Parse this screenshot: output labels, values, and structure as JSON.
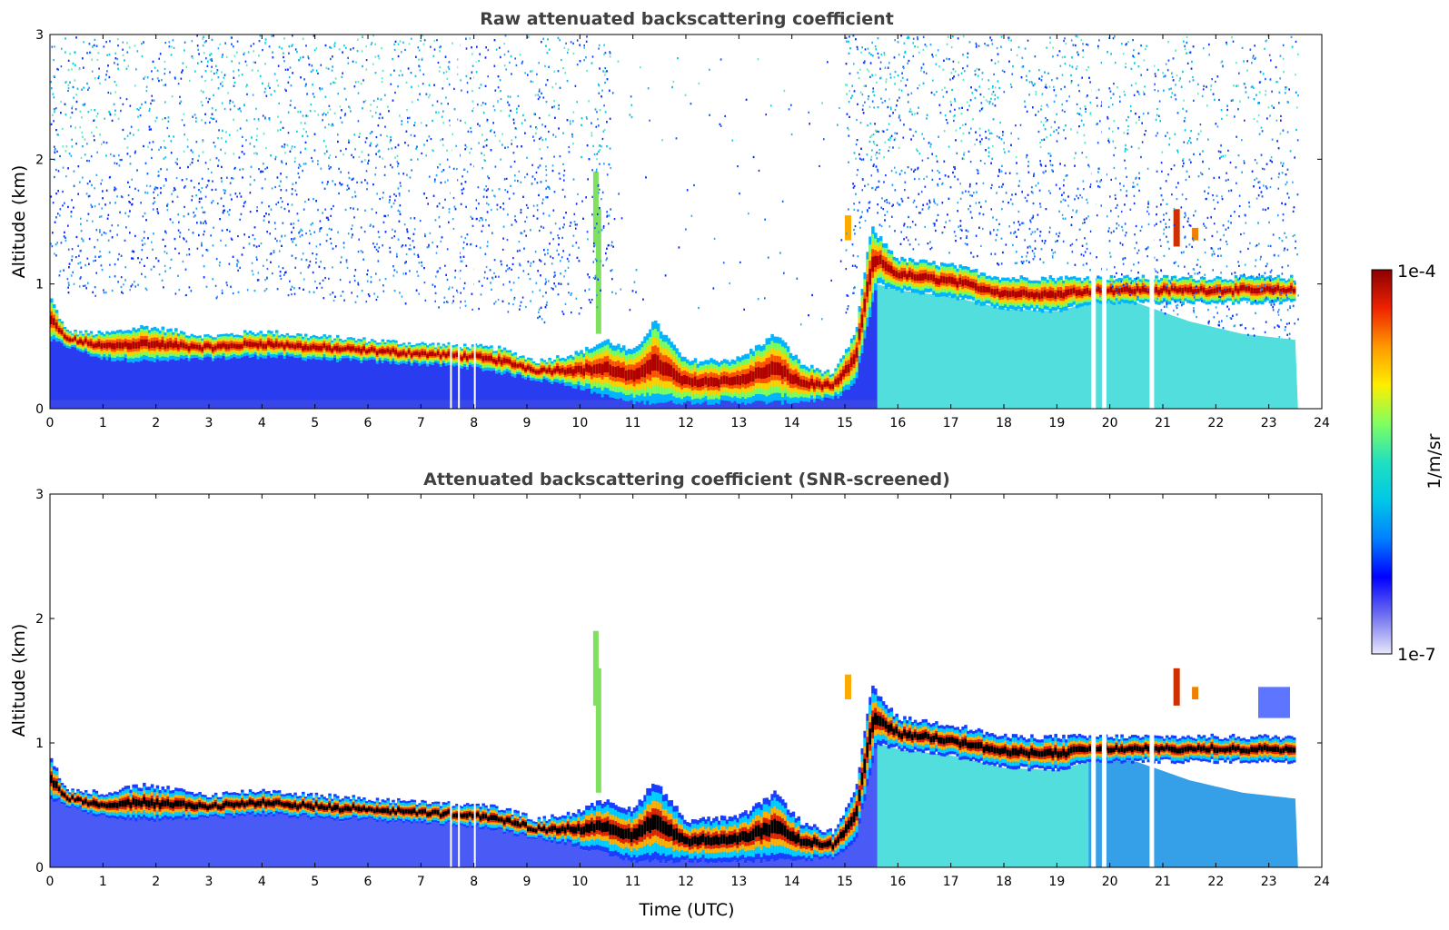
{
  "chart_data": [
    {
      "type": "heatmap",
      "title": "Raw attenuated backscattering coefficient",
      "xlabel": "",
      "ylabel": "Altitude (km)",
      "xlim": [
        0,
        24
      ],
      "ylim": [
        0,
        3
      ],
      "xticks": [
        "0",
        "1",
        "2",
        "3",
        "4",
        "5",
        "6",
        "7",
        "8",
        "9",
        "10",
        "11",
        "12",
        "13",
        "14",
        "15",
        "16",
        "17",
        "18",
        "19",
        "20",
        "21",
        "22",
        "23",
        "24"
      ],
      "yticks": [
        "0",
        "1",
        "2",
        "3"
      ],
      "data_end_hour": 23.55,
      "layer_top_km": [
        [
          0,
          0.9
        ],
        [
          0.3,
          0.62
        ],
        [
          1,
          0.6
        ],
        [
          1.8,
          0.66
        ],
        [
          3,
          0.58
        ],
        [
          4,
          0.62
        ],
        [
          5,
          0.58
        ],
        [
          6,
          0.55
        ],
        [
          7,
          0.52
        ],
        [
          8,
          0.5
        ],
        [
          8.5,
          0.48
        ],
        [
          9.2,
          0.38
        ],
        [
          10,
          0.45
        ],
        [
          10.5,
          0.55
        ],
        [
          11,
          0.45
        ],
        [
          11.4,
          0.7
        ],
        [
          12,
          0.38
        ],
        [
          13,
          0.4
        ],
        [
          13.7,
          0.6
        ],
        [
          14.2,
          0.35
        ],
        [
          14.8,
          0.28
        ],
        [
          15.2,
          0.6
        ],
        [
          15.5,
          1.45
        ],
        [
          16,
          1.2
        ],
        [
          17,
          1.15
        ],
        [
          18,
          1.05
        ],
        [
          19,
          1.05
        ],
        [
          19.6,
          1.05
        ]
      ],
      "layer_bottom_km": [
        [
          0,
          0.55
        ],
        [
          1,
          0.4
        ],
        [
          2,
          0.38
        ],
        [
          3,
          0.4
        ],
        [
          4,
          0.42
        ],
        [
          5,
          0.4
        ],
        [
          6,
          0.38
        ],
        [
          7,
          0.36
        ],
        [
          8,
          0.33
        ],
        [
          9,
          0.25
        ],
        [
          9.9,
          0.18
        ],
        [
          10.5,
          0.1
        ],
        [
          11,
          0.05
        ],
        [
          12,
          0.05
        ],
        [
          13,
          0.05
        ],
        [
          14,
          0.05
        ],
        [
          14.8,
          0.08
        ],
        [
          15.2,
          0.2
        ],
        [
          15.6,
          1.0
        ],
        [
          16,
          0.95
        ],
        [
          17,
          0.9
        ],
        [
          18,
          0.8
        ],
        [
          19,
          0.78
        ],
        [
          19.6,
          0.85
        ]
      ],
      "aerosol_top_km": [
        [
          19.6,
          0.9
        ],
        [
          20.5,
          0.85
        ],
        [
          21.5,
          0.7
        ],
        [
          22.5,
          0.6
        ],
        [
          23.55,
          0.55
        ]
      ],
      "noise_region": "above boundary layer, reduced between 10.5 and 15 UTC"
    },
    {
      "type": "heatmap",
      "title": "Attenuated backscattering coefficient (SNR-screened)",
      "xlabel": "Time (UTC)",
      "ylabel": "Altitude (km)",
      "xlim": [
        0,
        24
      ],
      "ylim": [
        0,
        3
      ],
      "xticks": [
        "0",
        "1",
        "2",
        "3",
        "4",
        "5",
        "6",
        "7",
        "8",
        "9",
        "10",
        "11",
        "12",
        "13",
        "14",
        "15",
        "16",
        "17",
        "18",
        "19",
        "20",
        "21",
        "22",
        "23",
        "24"
      ],
      "yticks": [
        "0",
        "1",
        "2",
        "3"
      ],
      "data_end_hour": 23.55,
      "noise_region": "none (screened)"
    }
  ],
  "colorbar": {
    "label": "1/m/sr",
    "max_label": "1e-4",
    "min_label": "1e-7",
    "colormap": "jet",
    "stops": [
      "#e8e8fa",
      "#7070f0",
      "#0000ff",
      "#0080ff",
      "#00c8e6",
      "#20e0c0",
      "#80ff60",
      "#ffee00",
      "#ff9900",
      "#ee2200",
      "#8b0000"
    ]
  }
}
